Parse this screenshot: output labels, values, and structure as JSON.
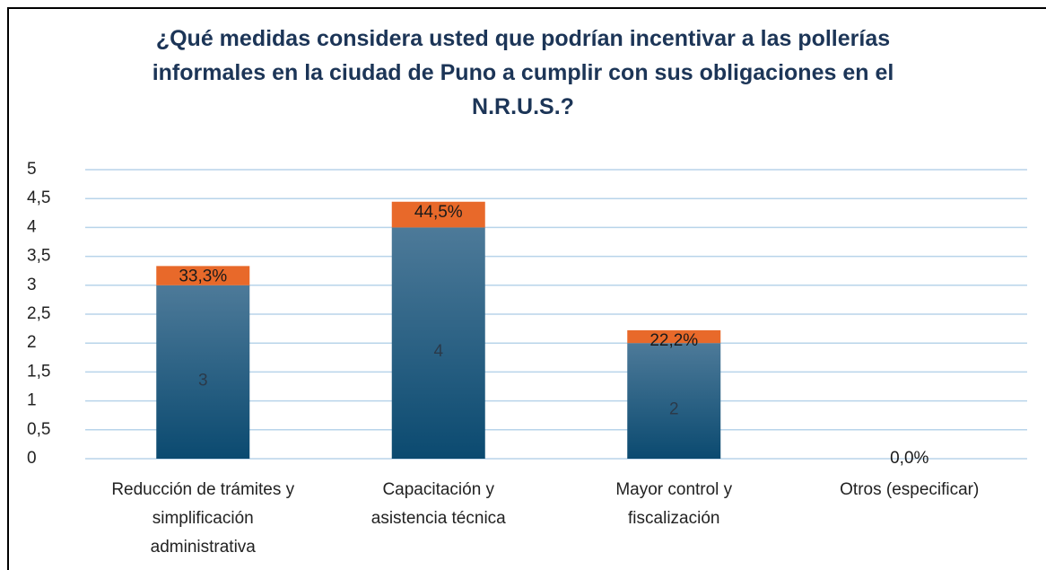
{
  "chart_data": {
    "type": "stacked_bar",
    "title": "¿Qué medidas considera usted que podrían incentivar a las pollerías informales en la ciudad de Puno a cumplir con sus obligaciones en el N.R.U.S.?",
    "categories": [
      "Reducción de trámites y simplificación administrativa",
      "Capacitación y asistencia técnica",
      "Mayor control y fiscalización",
      "Otros (especificar)"
    ],
    "series": [
      {
        "values": [
          3,
          4,
          2,
          0
        ],
        "value_labels": [
          "3",
          "4",
          "2",
          null
        ],
        "color": "#0e4d74"
      },
      {
        "values": [
          0.333,
          0.445,
          0.222,
          0
        ],
        "value_labels": [
          "33,3%",
          "44,5%",
          "22,2%",
          "0,0%"
        ],
        "color": "#e8692a"
      }
    ],
    "ylim": [
      0,
      5
    ],
    "yticks": [
      0,
      {
        "value": 0.5,
        "label": "0,5"
      },
      1,
      {
        "value": 1.5,
        "label": "1,5"
      },
      2,
      {
        "value": 2.5,
        "label": "2,5"
      },
      3,
      {
        "value": 3.5,
        "label": "3,5"
      },
      4,
      {
        "value": 4.5,
        "label": "4,5"
      },
      5
    ],
    "grid": true
  }
}
